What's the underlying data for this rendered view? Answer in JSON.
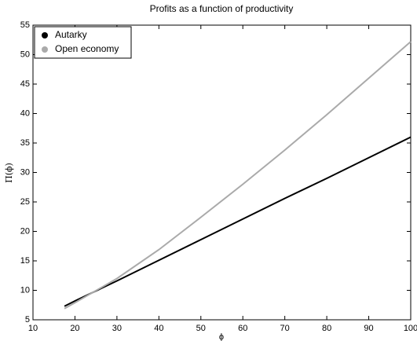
{
  "chart_data": {
    "type": "line",
    "title": "Profits as a function of productivity",
    "xlabel": "ϕ",
    "ylabel": "Π(ϕ)",
    "x": [
      17.5,
      20,
      30,
      40,
      50,
      60,
      70,
      80,
      90,
      100
    ],
    "series": [
      {
        "name": "Autarky",
        "color": "#000000",
        "values": [
          7.3,
          8.2,
          11.6,
          15.1,
          18.6,
          22.1,
          25.6,
          29.0,
          32.5,
          36.0
        ]
      },
      {
        "name": "Open economy",
        "color": "#aaaaaa",
        "values": [
          6.9,
          7.9,
          12.0,
          16.9,
          22.4,
          28.0,
          33.8,
          39.8,
          46.0,
          52.2
        ]
      }
    ],
    "xlim": [
      10,
      100
    ],
    "xticks": [
      10,
      20,
      30,
      40,
      50,
      60,
      70,
      80,
      90,
      100
    ],
    "ylim": [
      5,
      55
    ],
    "yticks": [
      5,
      10,
      15,
      20,
      25,
      30,
      35,
      40,
      45,
      50,
      55
    ],
    "legend": "upper left",
    "grid": false
  }
}
